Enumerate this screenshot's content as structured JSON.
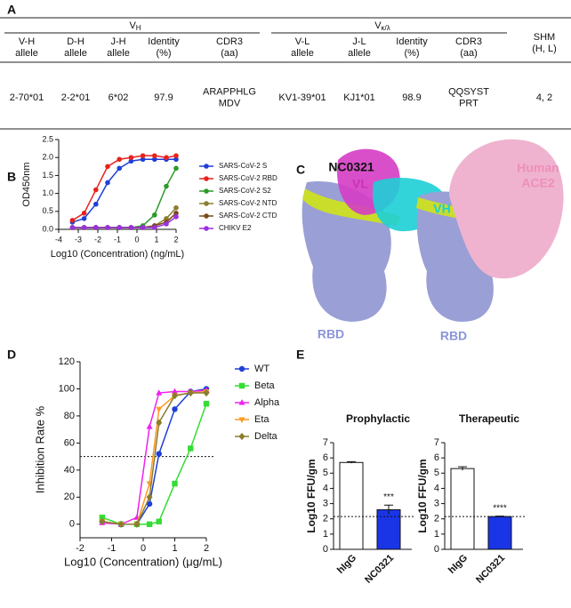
{
  "panel_labels": [
    "A",
    "B",
    "C",
    "D",
    "E"
  ],
  "table": {
    "groups": [
      {
        "main": "V",
        "sub": "H"
      },
      {
        "main": "V",
        "sub": "κ/λ"
      }
    ],
    "columns": [
      [
        "V-H",
        "allele"
      ],
      [
        "D-H",
        "allele"
      ],
      [
        "J-H",
        "allele"
      ],
      [
        "Identity",
        "(%)"
      ],
      [
        "CDR3",
        "(aa)"
      ],
      [
        "V-L",
        "allele"
      ],
      [
        "J-L",
        "allele"
      ],
      [
        "Identity",
        "(%)"
      ],
      [
        "CDR3",
        "(aa)"
      ],
      [
        "SHM",
        "(H, L)"
      ]
    ],
    "rows": [
      [
        [
          "2-70*01"
        ],
        [
          "2-2*01"
        ],
        [
          "6*02"
        ],
        [
          "97.9"
        ],
        [
          "ARAPPHLG",
          "MDV"
        ],
        [
          "KV1-39*01"
        ],
        [
          "KJ1*01"
        ],
        [
          "98.9"
        ],
        [
          "QQSYST",
          "PRT"
        ],
        [
          "4, 2"
        ]
      ]
    ]
  },
  "structure": {
    "antibody": "NC0321",
    "vl": "VL",
    "vh": "VH",
    "ace2": [
      "Human",
      "ACE2"
    ],
    "rbd": [
      "RBD",
      "RBD"
    ]
  },
  "chart_data": [
    {
      "type": "line",
      "xlabel": "Log10 (Concentration) (ng/mL)",
      "ylabel": "OD450nm",
      "x": [
        -3.3,
        -2.7,
        -2.1,
        -1.5,
        -0.9,
        -0.3,
        0.3,
        0.9,
        1.5,
        2.0
      ],
      "xlim": [
        -4,
        2
      ],
      "xticks": [
        -4,
        -3,
        -2,
        -1,
        0,
        1,
        2
      ],
      "ylim": [
        0,
        2.5
      ],
      "yticks": [
        {
          "value": 0,
          "label": "0.0"
        },
        {
          "value": 0.5,
          "label": "0.5"
        },
        {
          "value": 1,
          "label": "1.0"
        },
        {
          "value": 1.5,
          "label": "1.5"
        },
        {
          "value": 2,
          "label": "2.0"
        },
        {
          "value": 2.5,
          "label": "2.5"
        }
      ],
      "series": [
        {
          "name": "SARS-CoV-2 S",
          "color": "#1f3fd6",
          "marker": "circle",
          "values": [
            0.2,
            0.3,
            0.7,
            1.3,
            1.7,
            1.9,
            1.95,
            1.95,
            1.95,
            1.95
          ]
        },
        {
          "name": "SARS-CoV-2 RBD",
          "color": "#e8221e",
          "marker": "circle",
          "values": [
            0.25,
            0.45,
            1.1,
            1.75,
            1.95,
            2.0,
            2.05,
            2.05,
            2.0,
            2.05
          ]
        },
        {
          "name": "SARS-CoV-2 S2",
          "color": "#2a9a2a",
          "marker": "circle",
          "values": [
            0.05,
            0.05,
            0.05,
            0.05,
            0.05,
            0.05,
            0.1,
            0.4,
            1.2,
            1.7
          ]
        },
        {
          "name": "SARS-CoV-2 NTD",
          "color": "#8b7d2e",
          "marker": "circle",
          "values": [
            0.05,
            0.05,
            0.05,
            0.05,
            0.05,
            0.05,
            0.05,
            0.1,
            0.3,
            0.6
          ]
        },
        {
          "name": "SARS-CoV-2 CTD",
          "color": "#7a4a1e",
          "marker": "circle",
          "values": [
            0.05,
            0.05,
            0.05,
            0.05,
            0.05,
            0.05,
            0.05,
            0.1,
            0.2,
            0.45
          ]
        },
        {
          "name": "CHIKV E2",
          "color": "#9b30e0",
          "marker": "circle",
          "values": [
            0.05,
            0.05,
            0.05,
            0.05,
            0.05,
            0.05,
            0.05,
            0.05,
            0.15,
            0.35
          ]
        }
      ]
    },
    {
      "type": "line",
      "xlabel": "Log10 (Concentration) (μg/mL)",
      "ylabel": "Inhibition Rate %",
      "x": [
        -1.3,
        -0.7,
        -0.2,
        0.2,
        0.5,
        1.0,
        1.5,
        2.0
      ],
      "xlim": [
        -2,
        2
      ],
      "xticks": [
        -2,
        -1,
        0,
        1,
        2
      ],
      "ylim": [
        -10,
        120
      ],
      "yticks": [
        0,
        20,
        40,
        60,
        80,
        100,
        120
      ],
      "reference_line": 50,
      "series": [
        {
          "name": "WT",
          "color": "#1f3fd6",
          "marker": "circle",
          "values": [
            2,
            0,
            0,
            15,
            52,
            85,
            98,
            100
          ]
        },
        {
          "name": "Beta",
          "color": "#33dd33",
          "marker": "square",
          "values": [
            5,
            0,
            0,
            0,
            2,
            30,
            56,
            89
          ]
        },
        {
          "name": "Alpha",
          "color": "#ee22ee",
          "marker": "triangle-up",
          "values": [
            1,
            0,
            5,
            72,
            97,
            98,
            98,
            99
          ]
        },
        {
          "name": "Eta",
          "color": "#ff9922",
          "marker": "triangle-down",
          "values": [
            2,
            0,
            0,
            30,
            85,
            95,
            97,
            98
          ]
        },
        {
          "name": "Delta",
          "color": "#8b7d2e",
          "marker": "diamond",
          "values": [
            2,
            0,
            0,
            20,
            75,
            95,
            97,
            97
          ]
        }
      ]
    },
    {
      "type": "bar",
      "title": "Prophylactic",
      "ylabel": "Log10 FFU/gm",
      "categories": [
        "hIgG",
        "NC0321"
      ],
      "values": [
        5.7,
        2.6
      ],
      "errors": [
        0.05,
        0.3
      ],
      "colors": [
        "#ffffff",
        "#1a35e6"
      ],
      "annotations": [
        null,
        "***"
      ],
      "reference_line": 2.15,
      "ylim": [
        0,
        7
      ],
      "yticks": [
        0,
        1,
        2,
        3,
        4,
        5,
        6,
        7
      ]
    },
    {
      "type": "bar",
      "title": "Therapeutic",
      "ylabel": "Log10 FFU/gm",
      "categories": [
        "hIgG",
        "NC0321"
      ],
      "values": [
        5.3,
        2.15
      ],
      "errors": [
        0.12,
        0.03
      ],
      "colors": [
        "#ffffff",
        "#1a35e6"
      ],
      "annotations": [
        null,
        "****"
      ],
      "reference_line": 2.15,
      "ylim": [
        0,
        7
      ],
      "yticks": [
        0,
        1,
        2,
        3,
        4,
        5,
        6,
        7
      ]
    }
  ]
}
